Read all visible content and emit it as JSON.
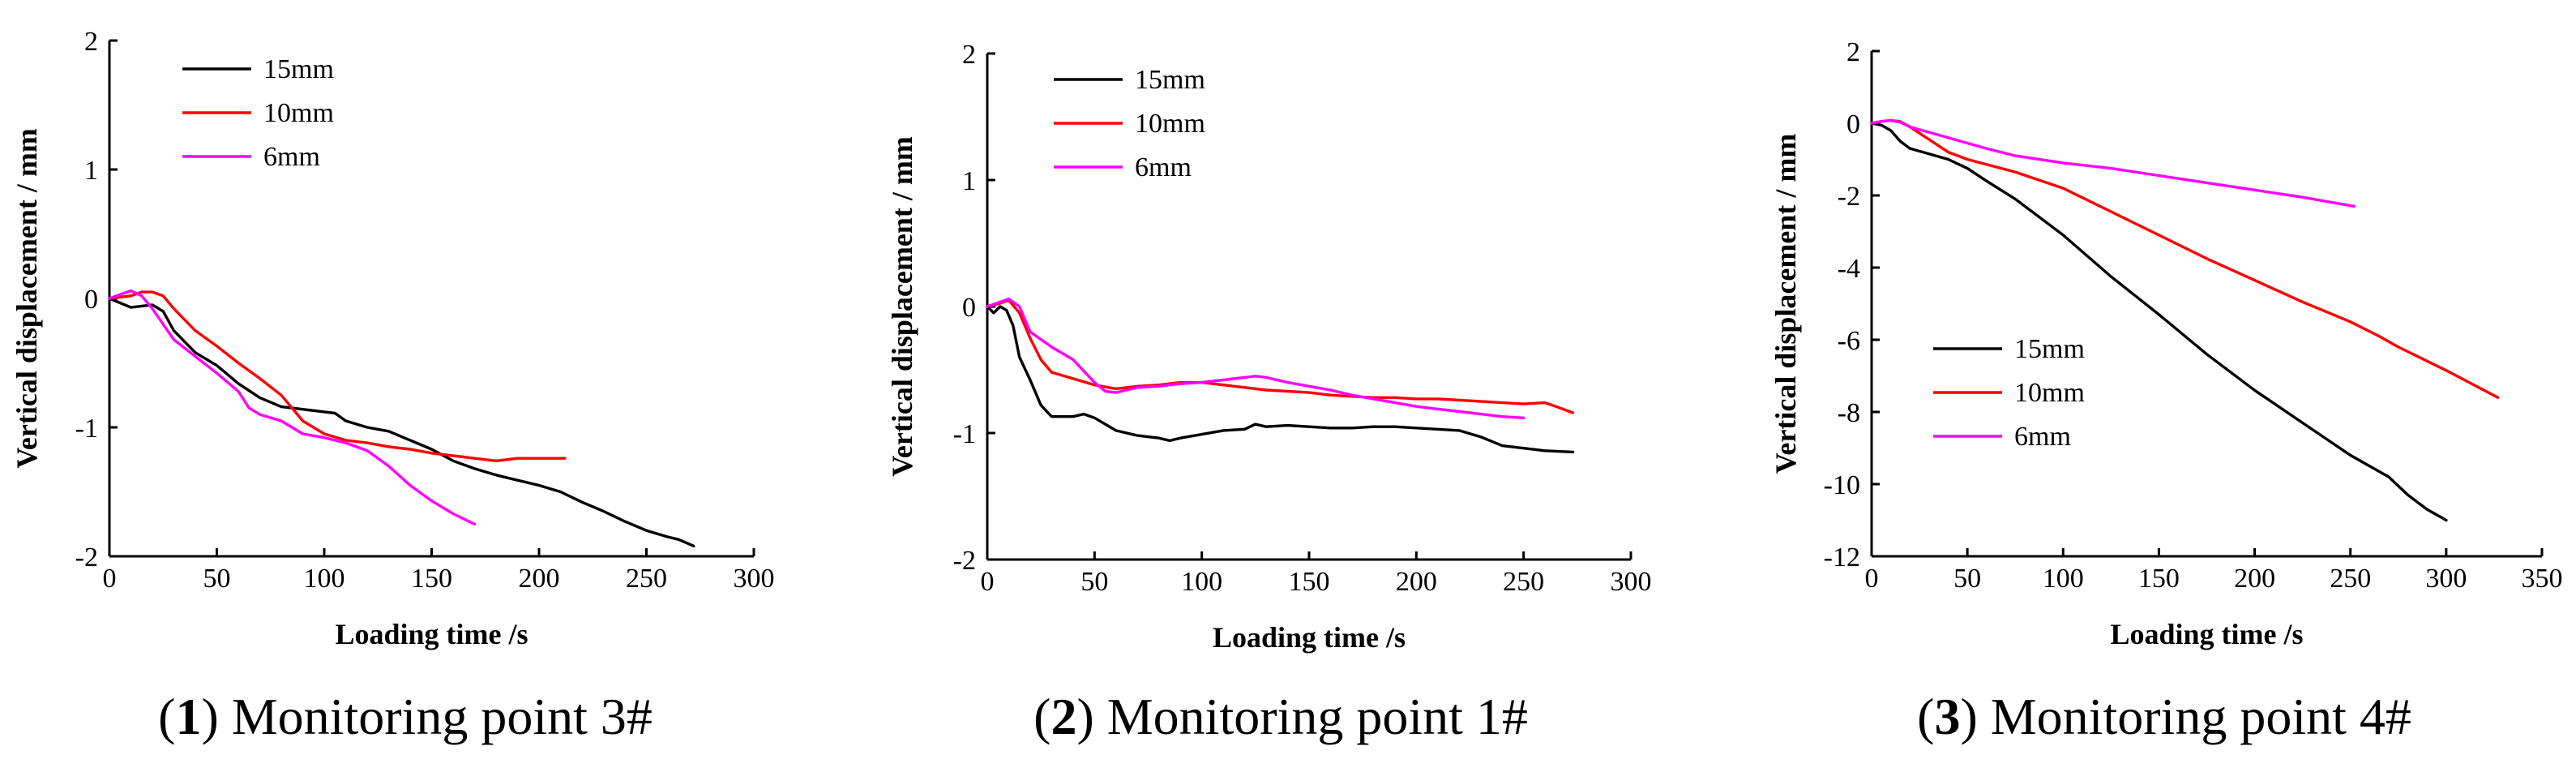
{
  "chart_data": [
    {
      "type": "line",
      "panel_number": "1",
      "caption": "Monitoring point 3#",
      "xlabel": "Loading time /s",
      "ylabel": "Vertical displacement / mm",
      "xlim": [
        0,
        300
      ],
      "ylim": [
        -2,
        2
      ],
      "xticks": [
        0,
        50,
        100,
        150,
        200,
        250,
        300
      ],
      "yticks": [
        -2,
        -1,
        0,
        1,
        2
      ],
      "legend_position": "top-left",
      "series": [
        {
          "name": "15mm",
          "color": "#000000",
          "x": [
            0,
            10,
            20,
            25,
            30,
            40,
            50,
            60,
            70,
            80,
            90,
            100,
            105,
            110,
            120,
            130,
            140,
            150,
            160,
            170,
            180,
            190,
            200,
            210,
            220,
            230,
            240,
            250,
            260,
            265,
            272
          ],
          "y": [
            0,
            -0.07,
            -0.05,
            -0.1,
            -0.25,
            -0.42,
            -0.52,
            -0.66,
            -0.77,
            -0.84,
            -0.86,
            -0.88,
            -0.89,
            -0.95,
            -1.0,
            -1.03,
            -1.1,
            -1.17,
            -1.26,
            -1.32,
            -1.37,
            -1.41,
            -1.45,
            -1.5,
            -1.58,
            -1.65,
            -1.73,
            -1.8,
            -1.85,
            -1.87,
            -1.92
          ]
        },
        {
          "name": "10mm",
          "color": "#ff0000",
          "x": [
            0,
            10,
            15,
            20,
            25,
            30,
            40,
            50,
            60,
            70,
            80,
            90,
            100,
            110,
            120,
            130,
            140,
            150,
            160,
            170,
            180,
            185,
            190,
            200,
            212
          ],
          "y": [
            0,
            0.02,
            0.05,
            0.05,
            0.02,
            -0.08,
            -0.25,
            -0.37,
            -0.5,
            -0.62,
            -0.75,
            -0.95,
            -1.05,
            -1.1,
            -1.12,
            -1.15,
            -1.17,
            -1.2,
            -1.22,
            -1.24,
            -1.26,
            -1.25,
            -1.24,
            -1.24,
            -1.24
          ]
        },
        {
          "name": "6mm",
          "color": "#ff00ff",
          "x": [
            0,
            5,
            10,
            15,
            20,
            25,
            30,
            40,
            50,
            60,
            65,
            70,
            80,
            90,
            100,
            110,
            120,
            130,
            140,
            150,
            160,
            170
          ],
          "y": [
            0,
            0.03,
            0.06,
            0.02,
            -0.08,
            -0.2,
            -0.32,
            -0.45,
            -0.58,
            -0.72,
            -0.85,
            -0.9,
            -0.95,
            -1.05,
            -1.08,
            -1.12,
            -1.18,
            -1.3,
            -1.45,
            -1.57,
            -1.67,
            -1.75
          ]
        }
      ]
    },
    {
      "type": "line",
      "panel_number": "2",
      "caption": "Monitoring point 1#",
      "xlabel": "Loading time /s",
      "ylabel": "Vertical displacement / mm",
      "xlim": [
        0,
        300
      ],
      "ylim": [
        -2,
        2
      ],
      "xticks": [
        0,
        50,
        100,
        150,
        200,
        250,
        300
      ],
      "yticks": [
        -2,
        -1,
        0,
        1,
        2
      ],
      "legend_position": "top-left",
      "series": [
        {
          "name": "15mm",
          "color": "#000000",
          "x": [
            0,
            3,
            6,
            9,
            12,
            15,
            20,
            25,
            30,
            40,
            45,
            50,
            60,
            70,
            80,
            85,
            90,
            100,
            110,
            120,
            125,
            130,
            140,
            150,
            160,
            170,
            180,
            190,
            200,
            210,
            220,
            230,
            240,
            250,
            260,
            273
          ],
          "y": [
            0,
            -0.05,
            0,
            -0.03,
            -0.15,
            -0.4,
            -0.58,
            -0.78,
            -0.87,
            -0.87,
            -0.85,
            -0.88,
            -0.98,
            -1.02,
            -1.04,
            -1.06,
            -1.04,
            -1.01,
            -0.98,
            -0.97,
            -0.93,
            -0.95,
            -0.94,
            -0.95,
            -0.96,
            -0.96,
            -0.95,
            -0.95,
            -0.96,
            -0.97,
            -0.98,
            -1.03,
            -1.1,
            -1.12,
            -1.14,
            -1.15
          ]
        },
        {
          "name": "10mm",
          "color": "#ff0000",
          "x": [
            0,
            5,
            10,
            15,
            20,
            25,
            30,
            40,
            50,
            60,
            70,
            80,
            90,
            100,
            110,
            120,
            130,
            140,
            150,
            160,
            170,
            180,
            190,
            200,
            210,
            220,
            230,
            240,
            250,
            260,
            265,
            273
          ],
          "y": [
            0,
            0.02,
            0.05,
            -0.05,
            -0.25,
            -0.42,
            -0.52,
            -0.57,
            -0.62,
            -0.65,
            -0.63,
            -0.62,
            -0.6,
            -0.6,
            -0.62,
            -0.64,
            -0.66,
            -0.67,
            -0.68,
            -0.7,
            -0.71,
            -0.72,
            -0.72,
            -0.73,
            -0.73,
            -0.74,
            -0.75,
            -0.76,
            -0.77,
            -0.76,
            -0.79,
            -0.84
          ]
        },
        {
          "name": "6mm",
          "color": "#ff00ff",
          "x": [
            0,
            5,
            10,
            15,
            20,
            30,
            40,
            50,
            55,
            60,
            70,
            80,
            90,
            100,
            110,
            120,
            125,
            130,
            140,
            150,
            160,
            170,
            180,
            190,
            200,
            210,
            220,
            230,
            240,
            250
          ],
          "y": [
            0,
            0.03,
            0.06,
            0.0,
            -0.2,
            -0.32,
            -0.42,
            -0.6,
            -0.67,
            -0.68,
            -0.64,
            -0.63,
            -0.61,
            -0.6,
            -0.58,
            -0.56,
            -0.55,
            -0.56,
            -0.6,
            -0.63,
            -0.66,
            -0.7,
            -0.73,
            -0.76,
            -0.79,
            -0.81,
            -0.83,
            -0.85,
            -0.87,
            -0.88
          ]
        }
      ]
    },
    {
      "type": "line",
      "panel_number": "3",
      "caption": "Monitoring point 4#",
      "xlabel": "Loading time /s",
      "ylabel": "Vertical displacement / mm",
      "xlim": [
        0,
        350
      ],
      "ylim": [
        -12,
        2
      ],
      "xticks": [
        0,
        50,
        100,
        150,
        200,
        250,
        300,
        350
      ],
      "yticks": [
        -12,
        -10,
        -8,
        -6,
        -4,
        -2,
        0,
        2
      ],
      "legend_position": "bottom-left",
      "series": [
        {
          "name": "15mm",
          "color": "#000000",
          "x": [
            0,
            5,
            10,
            15,
            20,
            30,
            40,
            50,
            60,
            75,
            100,
            125,
            150,
            175,
            200,
            225,
            250,
            270,
            280,
            290,
            300
          ],
          "y": [
            0,
            -0.05,
            -0.2,
            -0.5,
            -0.7,
            -0.85,
            -1.0,
            -1.25,
            -1.6,
            -2.1,
            -3.1,
            -4.25,
            -5.3,
            -6.4,
            -7.4,
            -8.3,
            -9.2,
            -9.8,
            -10.3,
            -10.7,
            -11.0
          ]
        },
        {
          "name": "10mm",
          "color": "#ff0000",
          "x": [
            0,
            5,
            10,
            15,
            20,
            30,
            40,
            50,
            75,
            100,
            125,
            150,
            175,
            200,
            225,
            250,
            265,
            275,
            300,
            327
          ],
          "y": [
            0,
            0.05,
            0.08,
            0.05,
            -0.1,
            -0.45,
            -0.8,
            -1.0,
            -1.35,
            -1.8,
            -2.45,
            -3.1,
            -3.75,
            -4.35,
            -4.95,
            -5.5,
            -5.9,
            -6.2,
            -6.85,
            -7.6
          ]
        },
        {
          "name": "6mm",
          "color": "#ff00ff",
          "x": [
            0,
            5,
            10,
            15,
            20,
            30,
            40,
            50,
            60,
            75,
            100,
            125,
            150,
            175,
            200,
            225,
            252
          ],
          "y": [
            0,
            0.05,
            0.08,
            0.03,
            -0.1,
            -0.25,
            -0.4,
            -0.55,
            -0.7,
            -0.9,
            -1.1,
            -1.25,
            -1.45,
            -1.65,
            -1.85,
            -2.05,
            -2.3
          ]
        }
      ]
    }
  ]
}
